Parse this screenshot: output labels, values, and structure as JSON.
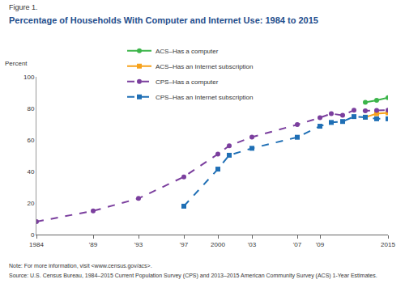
{
  "chart_data": {
    "type": "line",
    "figure_label": "Figure 1.",
    "title": "Percentage of Households With Computer and Internet Use: 1984 to 2015",
    "ylabel": "Percent",
    "footnotes": [
      "Note: For more information, visit <www.census.gov/acs>.",
      "Source: U.S. Census Bureau, 1984–2015 Current Population Survey (CPS) and 2013–2015 American Community Survey (ACS) 1-Year Estimates."
    ],
    "x": [
      1984,
      1989,
      1993,
      1997,
      2000,
      2001,
      2003,
      2007,
      2009,
      2010,
      2011,
      2012,
      2013,
      2014,
      2015
    ],
    "series": [
      {
        "name": "ACS–Has a computer",
        "color": "#3cb54a",
        "line_style": "solid",
        "marker": "circle",
        "values": [
          null,
          null,
          null,
          null,
          null,
          null,
          null,
          null,
          null,
          null,
          null,
          null,
          83.8,
          85.1,
          86.8
        ]
      },
      {
        "name": "ACS–Has an Internet subscription",
        "color": "#f7a21b",
        "line_style": "solid",
        "marker": "square",
        "values": [
          null,
          null,
          null,
          null,
          null,
          null,
          null,
          null,
          null,
          null,
          null,
          null,
          74.4,
          76.7,
          77.2
        ]
      },
      {
        "name": "CPS–Has a computer",
        "color": "#7b3f9e",
        "line_style": "dash",
        "marker": "circle",
        "values": [
          8.2,
          15.0,
          22.9,
          36.6,
          51.0,
          56.3,
          61.8,
          69.7,
          74.1,
          76.7,
          75.6,
          78.9,
          78.5,
          78.7,
          78.9
        ]
      },
      {
        "name": "CPS–Has an Internet subscription",
        "color": "#1f6fb5",
        "line_style": "dash",
        "marker": "square",
        "values": [
          null,
          null,
          null,
          18.0,
          41.5,
          50.3,
          54.7,
          61.7,
          68.7,
          71.1,
          71.7,
          74.8,
          74.4,
          73.4,
          73.4
        ]
      }
    ],
    "xlim": [
      1984,
      2015
    ],
    "xticks": [
      1984,
      {
        "value": 1989,
        "label": "'89"
      },
      {
        "value": 1993,
        "label": "'93"
      },
      {
        "value": 1997,
        "label": "'97"
      },
      2000,
      {
        "value": 2003,
        "label": "'03"
      },
      {
        "value": 2007,
        "label": "'07"
      },
      {
        "value": 2009,
        "label": "'09"
      },
      2015
    ],
    "ylim": [
      0,
      100
    ],
    "yticks": [
      0,
      20,
      40,
      60,
      80,
      100
    ],
    "grid": false,
    "legend": "top"
  }
}
